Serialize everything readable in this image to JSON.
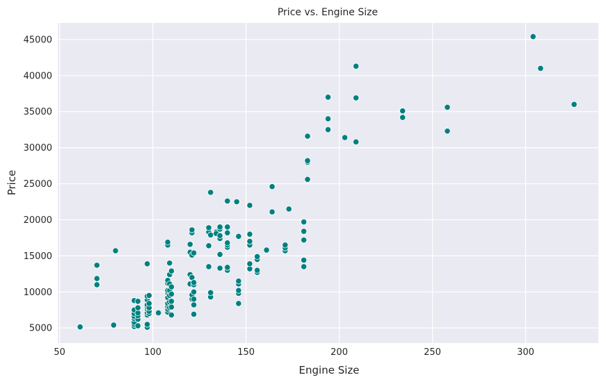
{
  "chart_data": {
    "type": "scatter",
    "title": "Price vs. Engine Size",
    "xlabel": "Engine Size",
    "ylabel": "Price",
    "xlim": [
      49,
      339
    ],
    "ylim": [
      2900,
      47300
    ],
    "xticks": [
      50,
      100,
      150,
      200,
      250,
      300
    ],
    "yticks": [
      5000,
      10000,
      15000,
      20000,
      25000,
      30000,
      35000,
      40000,
      45000
    ],
    "xtick_labels": [
      "50",
      "100",
      "150",
      "200",
      "250",
      "300"
    ],
    "ytick_labels": [
      "5000",
      "10000",
      "15000",
      "20000",
      "25000",
      "30000",
      "35000",
      "40000",
      "45000"
    ],
    "grid": true,
    "background_color": "#eaeaf2",
    "point_color": "#008080",
    "points": [
      [
        61,
        5150
      ],
      [
        70,
        13700
      ],
      [
        70,
        11850
      ],
      [
        70,
        11000
      ],
      [
        79,
        5400
      ],
      [
        80,
        15700
      ],
      [
        90,
        5200
      ],
      [
        90,
        5500
      ],
      [
        90,
        5800
      ],
      [
        90,
        6300
      ],
      [
        90,
        6600
      ],
      [
        90,
        7000
      ],
      [
        90,
        7500
      ],
      [
        90,
        8800
      ],
      [
        92,
        5300
      ],
      [
        92,
        6200
      ],
      [
        92,
        6700
      ],
      [
        92,
        7100
      ],
      [
        92,
        7800
      ],
      [
        92,
        8700
      ],
      [
        97,
        5100
      ],
      [
        97,
        5500
      ],
      [
        97,
        6800
      ],
      [
        97,
        7100
      ],
      [
        97,
        7600
      ],
      [
        97,
        7900
      ],
      [
        97,
        8200
      ],
      [
        97,
        8900
      ],
      [
        97,
        9400
      ],
      [
        97,
        13900
      ],
      [
        98,
        7000
      ],
      [
        98,
        7300
      ],
      [
        98,
        7800
      ],
      [
        98,
        8400
      ],
      [
        98,
        9500
      ],
      [
        103,
        7100
      ],
      [
        108,
        7200
      ],
      [
        108,
        7600
      ],
      [
        108,
        8000
      ],
      [
        108,
        8400
      ],
      [
        108,
        9200
      ],
      [
        108,
        9900
      ],
      [
        108,
        10200
      ],
      [
        108,
        11200
      ],
      [
        108,
        11600
      ],
      [
        108,
        16500
      ],
      [
        108,
        16900
      ],
      [
        109,
        7800
      ],
      [
        109,
        8600
      ],
      [
        109,
        9500
      ],
      [
        109,
        10200
      ],
      [
        109,
        11100
      ],
      [
        109,
        12400
      ],
      [
        109,
        14000
      ],
      [
        110,
        6800
      ],
      [
        110,
        7900
      ],
      [
        110,
        8700
      ],
      [
        110,
        9700
      ],
      [
        110,
        10700
      ],
      [
        110,
        12900
      ],
      [
        120,
        11100
      ],
      [
        120,
        12400
      ],
      [
        120,
        16600
      ],
      [
        120,
        15500
      ],
      [
        121,
        9000
      ],
      [
        121,
        9600
      ],
      [
        121,
        12000
      ],
      [
        121,
        15100
      ],
      [
        121,
        18200
      ],
      [
        121,
        18600
      ],
      [
        122,
        6900
      ],
      [
        122,
        8200
      ],
      [
        122,
        9000
      ],
      [
        122,
        10000
      ],
      [
        122,
        11000
      ],
      [
        122,
        11300
      ],
      [
        122,
        15400
      ],
      [
        130,
        13500
      ],
      [
        130,
        16400
      ],
      [
        130,
        18300
      ],
      [
        130,
        18900
      ],
      [
        131,
        9300
      ],
      [
        131,
        9900
      ],
      [
        131,
        23800
      ],
      [
        131,
        17900
      ],
      [
        134,
        18300
      ],
      [
        134,
        18100
      ],
      [
        136,
        13300
      ],
      [
        136,
        15200
      ],
      [
        136,
        17400
      ],
      [
        136,
        17800
      ],
      [
        136,
        18700
      ],
      [
        136,
        19000
      ],
      [
        140,
        13000
      ],
      [
        140,
        13400
      ],
      [
        140,
        16200
      ],
      [
        140,
        16500
      ],
      [
        140,
        16800
      ],
      [
        140,
        18200
      ],
      [
        140,
        19000
      ],
      [
        140,
        22600
      ],
      [
        145,
        22500
      ],
      [
        146,
        8400
      ],
      [
        146,
        9800
      ],
      [
        146,
        10200
      ],
      [
        146,
        11100
      ],
      [
        146,
        11500
      ],
      [
        146,
        17700
      ],
      [
        152,
        13200
      ],
      [
        152,
        13900
      ],
      [
        152,
        16500
      ],
      [
        152,
        17000
      ],
      [
        152,
        18000
      ],
      [
        152,
        22000
      ],
      [
        156,
        12700
      ],
      [
        156,
        13000
      ],
      [
        156,
        14500
      ],
      [
        156,
        14900
      ],
      [
        161,
        15800
      ],
      [
        164,
        21100
      ],
      [
        164,
        24600
      ],
      [
        171,
        15700
      ],
      [
        171,
        16100
      ],
      [
        171,
        16500
      ],
      [
        173,
        21500
      ],
      [
        181,
        13500
      ],
      [
        181,
        14400
      ],
      [
        181,
        17200
      ],
      [
        181,
        18400
      ],
      [
        181,
        19700
      ],
      [
        183,
        25600
      ],
      [
        183,
        28000
      ],
      [
        183,
        28200
      ],
      [
        183,
        31600
      ],
      [
        194,
        32500
      ],
      [
        194,
        34000
      ],
      [
        194,
        37000
      ],
      [
        203,
        31400
      ],
      [
        209,
        30800
      ],
      [
        209,
        36900
      ],
      [
        209,
        41300
      ],
      [
        234,
        34200
      ],
      [
        234,
        35100
      ],
      [
        258,
        32300
      ],
      [
        258,
        35600
      ],
      [
        304,
        45400
      ],
      [
        308,
        41000
      ],
      [
        326,
        36000
      ]
    ]
  }
}
